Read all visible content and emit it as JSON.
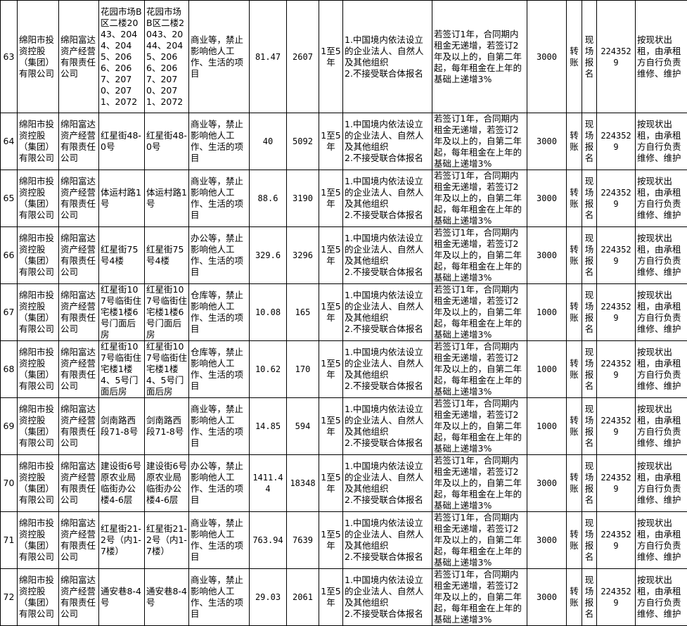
{
  "rows": [
    {
      "no": "63",
      "owner": "绵阳市投资控股（集团）有限公司",
      "company": "绵阳富达资产经营有限责任公司",
      "location": "花园市场B区二楼2043、2044、2045、2066、2067、2070、2071、2072",
      "location2": "花园市场B区二楼2043、2044、2045、2066、2067、2070、2071、2072",
      "use": "商业等，禁止影响他人工作、生活的项目",
      "area": "81.47",
      "rent": "2607",
      "term": "1至5年",
      "requirements": "1.中国境内依法设立的企业法人、自然人及其他组织\n2.不接受联合体报名",
      "increment": "若签订1年，合同期内租金无递增，若签订2年及以上的，自第二年起，每年租金在上年的基础上递增3%",
      "deposit": "3000",
      "payment": "转账",
      "signup": "现场报名",
      "phone": "2243529",
      "notes": "按现状出租，由承租方自行负责维修、维护"
    },
    {
      "no": "64",
      "owner": "绵阳市投资控股（集团）有限公司",
      "company": "绵阳富达资产经营有限责任公司",
      "location": "红星街48-0号",
      "location2": "红星街48-0号",
      "use": "商业等，禁止影响他人工作、生活的项目",
      "area": "40",
      "rent": "5092",
      "term": "1至5年",
      "requirements": "1.中国境内依法设立的企业法人、自然人及其他组织\n2.不接受联合体报名",
      "increment": "若签订1年，合同期内租金无递增，若签订2年及以上的，自第二年起，每年租金在上年的基础上递增3%",
      "deposit": "3000",
      "payment": "转账",
      "signup": "现场报名",
      "phone": "2243529",
      "notes": "按现状出租，由承租方自行负责维修、维护"
    },
    {
      "no": "65",
      "owner": "绵阳市投资控股（集团）有限公司",
      "company": "绵阳富达资产经营有限责任公司",
      "location": "体运村路1号",
      "location2": "体运村路1号",
      "use": "商业等，禁止影响他人工作、生活的项目",
      "area": "88.6",
      "rent": "3190",
      "term": "1至5年",
      "requirements": "1.中国境内依法设立的企业法人、自然人及其他组织\n2.不接受联合体报名",
      "increment": "若签订1年，合同期内租金无递增，若签订2年及以上的，自第二年起，每年租金在上年的基础上递增3%",
      "deposit": "3000",
      "payment": "转账",
      "signup": "现场报名",
      "phone": "2243529",
      "notes": "按现状出租，由承租方自行负责维修、维护"
    },
    {
      "no": "66",
      "owner": "绵阳市投资控股（集团）有限公司",
      "company": "绵阳富达资产经营有限责任公司",
      "location": "红星街75号4楼",
      "location2": "红星街75号4楼",
      "use": "办公等，禁止影响他人工作、生活的项目",
      "area": "329.6",
      "rent": "3296",
      "term": "1至5年",
      "requirements": "1.中国境内依法设立的企业法人、自然人及其他组织\n2.不接受联合体报名",
      "increment": "若签订1年，合同期内租金无递增，若签订2年及以上的，自第二年起，每年租金在上年的基础上递增3%",
      "deposit": "3000",
      "payment": "转账",
      "signup": "现场报名",
      "phone": "2243529",
      "notes": "按现状出租，由承租方自行负责维修、维护"
    },
    {
      "no": "67",
      "owner": "绵阳市投资控股（集团）有限公司",
      "company": "绵阳富达资产经营有限责任公司",
      "location": "红星街107号临街住宅楼1楼6号门面后房",
      "location2": "红星街107号临街住宅楼1楼6号门面后房",
      "use": "仓库等，禁止影响他人工作、生活的项目",
      "area": "10.08",
      "rent": "165",
      "term": "1至5年",
      "requirements": "1.中国境内依法设立的企业法人、自然人及其他组织\n2.不接受联合体报名",
      "increment": "若签订1年，合同期内租金无递增，若签订2年及以上的，自第二年起，每年租金在上年的基础上递增3%",
      "deposit": "1000",
      "payment": "转账",
      "signup": "现场报名",
      "phone": "2243529",
      "notes": "按现状出租，由承租方自行负责维修、维护"
    },
    {
      "no": "68",
      "owner": "绵阳市投资控股（集团）有限公司",
      "company": "绵阳富达资产经营有限责任公司",
      "location": "红星街107号临街住宅楼1楼4、5号门面后房",
      "location2": "红星街107号临街住宅楼1楼4、5号门面后房",
      "use": "仓库等，禁止影响他人工作、生活的项目",
      "area": "10.62",
      "rent": "170",
      "term": "1至5年",
      "requirements": "1.中国境内依法设立的企业法人、自然人及其他组织\n2.不接受联合体报名",
      "increment": "若签订1年，合同期内租金无递增，若签订2年及以上的，自第二年起，每年租金在上年的基础上递增3%",
      "deposit": "1000",
      "payment": "转账",
      "signup": "现场报名",
      "phone": "2243529",
      "notes": "按现状出租，由承租方自行负责维修、维护"
    },
    {
      "no": "69",
      "owner": "绵阳市投资控股（集团）有限公司",
      "company": "绵阳富达资产经营有限责任公司",
      "location": "剑南路西段71-8号",
      "location2": "剑南路西段71-8号",
      "use": "商业等，禁止影响他人工作、生活的项目",
      "area": "14.85",
      "rent": "594",
      "term": "1至5年",
      "requirements": "1.中国境内依法设立的企业法人、自然人及其他组织\n2.不接受联合体报名",
      "increment": "若签订1年，合同期内租金无递增，若签订2年及以上的，自第二年起，每年租金在上年的基础上递增3%",
      "deposit": "1000",
      "payment": "转账",
      "signup": "现场报名",
      "phone": "2243529",
      "notes": "按现状出租，由承租方自行负责维修、维护"
    },
    {
      "no": "70",
      "owner": "绵阳市投资控股（集团）有限公司",
      "company": "绵阳富达资产经营有限责任公司",
      "location": "建设街6号原农业局临街办公楼4-6层",
      "location2": "建设街6号原农业局临街办公楼4-6层",
      "use": "办公等，禁止影响他人工作、生活的项目",
      "area": "1411.44",
      "rent": "18348",
      "term": "1至5年",
      "requirements": "1.中国境内依法设立的企业法人、自然人及其他组织\n2.不接受联合体报名",
      "increment": "若签订1年，合同期内租金无递增，若签订2年及以上的，自第二年起，每年租金在上年的基础上递增3%",
      "deposit": "3000",
      "payment": "转账",
      "signup": "现场报名",
      "phone": "2243529",
      "notes": "按现状出租，由承租方自行负责维修、维护"
    },
    {
      "no": "71",
      "owner": "绵阳市投资控股（集团）有限公司",
      "company": "绵阳富达资产经营有限责任公司",
      "location": "红星街21-2号（内1-7楼）",
      "location2": "红星街21-2号（内1-7楼）",
      "use": "商业等，禁止影响他人工作、生活的项目",
      "area": "763.94",
      "rent": "7639",
      "term": "1至5年",
      "requirements": "1.中国境内依法设立的企业法人、自然人及其他组织\n2.不接受联合体报名",
      "increment": "若签订1年，合同期内租金无递增，若签订2年及以上的，自第二年起，每年租金在上年的基础上递增3%",
      "deposit": "3000",
      "payment": "转账",
      "signup": "现场报名",
      "phone": "2243529",
      "notes": "按现状出租，由承租方自行负责维修、维护"
    },
    {
      "no": "72",
      "owner": "绵阳市投资控股（集团）有限公司",
      "company": "绵阳富达资产经营有限责任公司",
      "location": "通安巷8-4号",
      "location2": "通安巷8-4号",
      "use": "商业等，禁止影响他人工作、生活的项目",
      "area": "29.03",
      "rent": "2061",
      "term": "1至5年",
      "requirements": "1.中国境内依法设立的企业法人、自然人及其他组织\n2.不接受联合体报名",
      "increment": "若签订1年，合同期内租金无递增，若签订2年及以上的，自第二年起，每年租金在上年的基础上递增3%",
      "deposit": "3000",
      "payment": "转账",
      "signup": "现场报名",
      "phone": "2243529",
      "notes": "按现状出租，由承租方自行负责维修、维护"
    }
  ]
}
